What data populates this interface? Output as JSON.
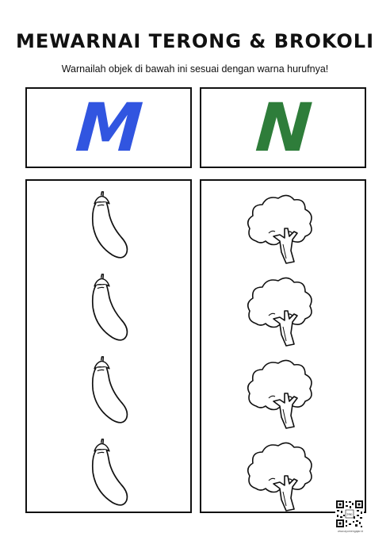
{
  "worksheet": {
    "title": "MEWARNAI TERONG & BROKOLI",
    "instruction": "Warnailah objek di bawah ini sesuai dengan warna hurufnya!",
    "letters": [
      {
        "char": "M",
        "color": "#3155e0"
      },
      {
        "char": "N",
        "color": "#2e7d3a"
      }
    ],
    "columns": [
      {
        "icon": "eggplant-icon",
        "count": 4
      },
      {
        "icon": "broccoli-icon",
        "count": 4
      }
    ],
    "footer": {
      "qr_label": "Siap",
      "credit": "www.ayomengajar.id"
    }
  }
}
